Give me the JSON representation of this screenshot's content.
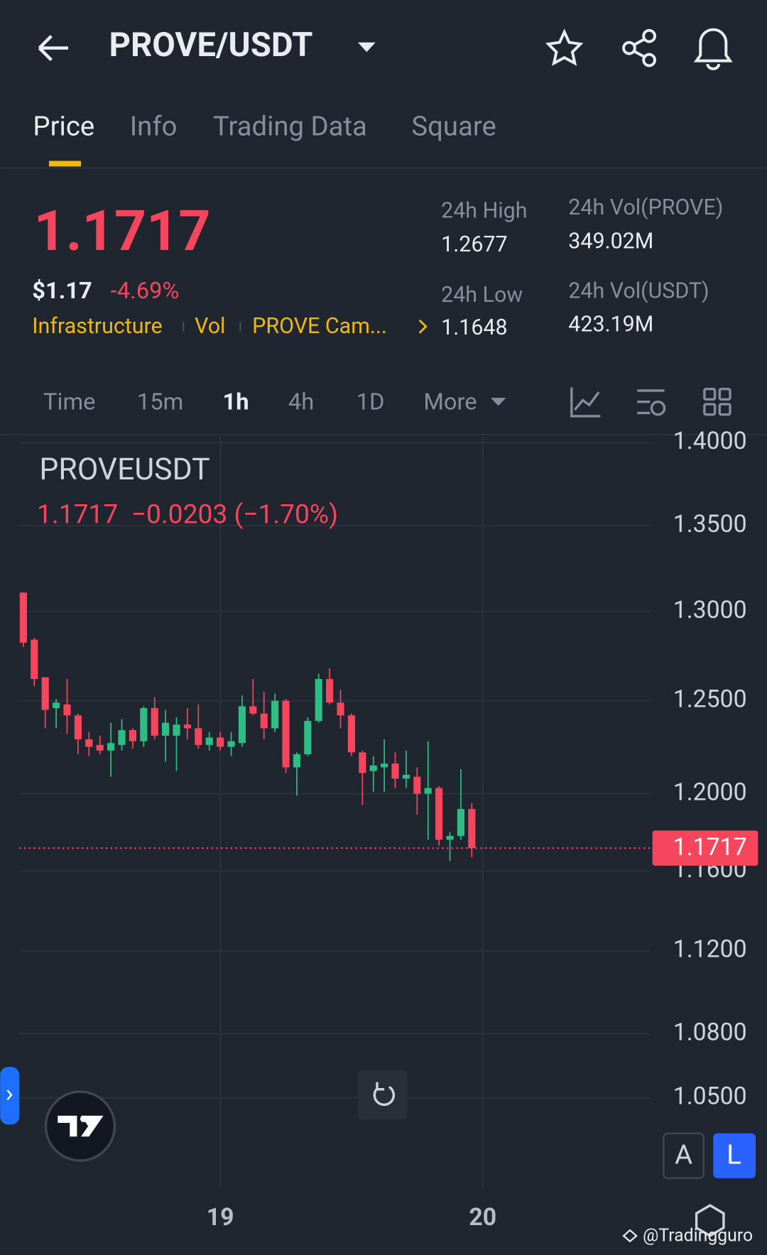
{
  "header": {
    "title": "PROVE/USDT"
  },
  "tabs": [
    "Price",
    "Info",
    "Trading Data",
    "Square"
  ],
  "ticker": {
    "last": "1.1717",
    "usd": "$1.17",
    "change": "-4.69%",
    "tags": [
      "Infrastructure",
      "Vol",
      "PROVE Cam..."
    ],
    "stats": [
      {
        "label": "24h High",
        "value": "1.2677"
      },
      {
        "label": "24h Vol(PROVE)",
        "value": "349.02M"
      },
      {
        "label": "24h Low",
        "value": "1.1648"
      },
      {
        "label": "24h Vol(USDT)",
        "value": "423.19M"
      }
    ]
  },
  "intervals": [
    "Time",
    "15m",
    "1h",
    "4h",
    "1D",
    "More"
  ],
  "chart_data": {
    "type": "candlestick",
    "title": "PROVEUSDT",
    "subtitle": "1.1717  −0.0203 (−1.70%)",
    "categories": [
      null,
      null,
      null,
      null,
      null,
      null,
      null,
      null,
      null,
      null,
      null,
      null,
      null,
      null,
      null,
      null,
      null,
      null,
      "19",
      null,
      null,
      null,
      null,
      null,
      null,
      null,
      null,
      null,
      null,
      null,
      null,
      null,
      null,
      null,
      null,
      null,
      null,
      null,
      null,
      null,
      null,
      null,
      "20"
    ],
    "open": [
      1.3108,
      1.284,
      1.263,
      1.246,
      1.248,
      1.242,
      1.229,
      1.226,
      1.223,
      1.226,
      1.234,
      1.228,
      1.246,
      1.231,
      1.231,
      1.237,
      1.235,
      1.226,
      1.23,
      1.225,
      1.227,
      1.247,
      1.243,
      1.235,
      1.25,
      1.214,
      1.221,
      1.239,
      1.262,
      1.249,
      1.242,
      1.222,
      1.212,
      1.214,
      1.216,
      1.208,
      1.209,
      1.2,
      1.203,
      1.176,
      1.178,
      1.192,
      null
    ],
    "high": [
      1.311,
      1.285,
      1.263,
      1.251,
      1.262,
      1.243,
      1.233,
      1.231,
      1.238,
      1.24,
      1.235,
      1.247,
      1.252,
      1.245,
      1.241,
      1.246,
      1.248,
      1.233,
      1.233,
      1.233,
      1.253,
      1.262,
      1.255,
      1.254,
      1.251,
      1.222,
      1.241,
      1.265,
      1.268,
      1.256,
      1.243,
      1.223,
      1.22,
      1.229,
      1.222,
      1.223,
      1.214,
      1.228,
      1.204,
      1.18,
      1.213,
      1.195,
      null
    ],
    "low": [
      1.28,
      1.258,
      1.235,
      1.235,
      1.232,
      1.221,
      1.22,
      1.221,
      1.209,
      1.223,
      1.224,
      1.225,
      1.229,
      1.217,
      1.212,
      1.229,
      1.224,
      1.223,
      1.223,
      1.22,
      1.225,
      1.242,
      1.229,
      1.233,
      1.211,
      1.199,
      1.22,
      1.238,
      1.248,
      1.235,
      1.22,
      1.194,
      1.201,
      1.201,
      1.203,
      1.203,
      1.189,
      1.176,
      1.173,
      1.165,
      1.176,
      1.167,
      null
    ],
    "close": [
      1.2823,
      1.262,
      1.245,
      1.249,
      1.242,
      1.229,
      1.225,
      1.223,
      1.227,
      1.234,
      1.228,
      1.246,
      1.231,
      1.238,
      1.237,
      1.235,
      1.226,
      1.23,
      1.225,
      1.228,
      1.247,
      1.243,
      1.235,
      1.25,
      1.214,
      1.221,
      1.239,
      1.262,
      1.249,
      1.242,
      1.222,
      1.211,
      1.215,
      1.216,
      1.208,
      1.21,
      1.2,
      1.203,
      1.176,
      1.178,
      1.192,
      1.1717,
      null
    ],
    "up_color": "#2ebd85",
    "down_color": "#f6465d",
    "log": true,
    "grid": true,
    "ylim": [
      1.009,
      1.404
    ],
    "yticks": [
      {
        "value": 1.4,
        "label": "1.4000"
      },
      {
        "value": 1.35,
        "label": "1.3500"
      },
      {
        "value": 1.3,
        "label": "1.3000"
      },
      {
        "value": 1.25,
        "label": "1.2500"
      },
      {
        "value": 1.2,
        "label": "1.2000"
      },
      {
        "value": 1.16,
        "label": "1.1600"
      },
      {
        "value": 1.12,
        "label": "1.1200"
      },
      {
        "value": 1.08,
        "label": "1.0800"
      },
      {
        "value": 1.05,
        "label": "1.0500"
      }
    ],
    "last_price": 1.1717
  },
  "scale_buttons": [
    "A",
    "L"
  ],
  "watermark": "@Tradingguro"
}
